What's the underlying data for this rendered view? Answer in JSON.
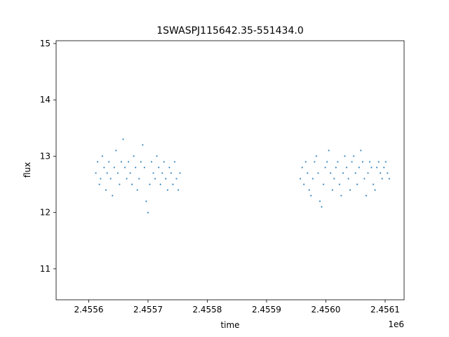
{
  "chart_data": {
    "type": "scatter",
    "title": "1SWASPJ115642.35-551434.0",
    "xlabel": "time",
    "ylabel": "flux",
    "x_offset_label": "1e6",
    "xlim": [
      2455545,
      2456132
    ],
    "ylim": [
      10.45,
      15.05
    ],
    "x_ticks": [
      2455600,
      2455700,
      2455800,
      2455900,
      2456000,
      2456100
    ],
    "x_tick_labels": [
      "2.4556",
      "2.4557",
      "2.4558",
      "2.4559",
      "2.4560",
      "2.4561"
    ],
    "y_ticks": [
      11,
      12,
      13,
      14,
      15
    ],
    "y_tick_labels": [
      "11",
      "12",
      "13",
      "14",
      "15"
    ],
    "grid": false,
    "marker_color": "#1f77b4",
    "series": [
      {
        "x": [
          2455612,
          2455615,
          2455618,
          2455620,
          2455623,
          2455626,
          2455629,
          2455631,
          2455634,
          2455637,
          2455640,
          2455643,
          2455646,
          2455649,
          2455652,
          2455655,
          2455658,
          2455661,
          2455664,
          2455667,
          2455670,
          2455673,
          2455676,
          2455679,
          2455682,
          2455685,
          2455688,
          2455691,
          2455694,
          2455697,
          2455700,
          2455703,
          2455706,
          2455709,
          2455712,
          2455715,
          2455718,
          2455721,
          2455724,
          2455727,
          2455730,
          2455733,
          2455736,
          2455739,
          2455742,
          2455745,
          2455748,
          2455751,
          2455754,
          2455957,
          2455960,
          2455963,
          2455966,
          2455969,
          2455972,
          2455975,
          2455978,
          2455981,
          2455984,
          2455987,
          2455990,
          2455993,
          2455996,
          2455999,
          2456002,
          2456005,
          2456008,
          2456011,
          2456014,
          2456017,
          2456020,
          2456023,
          2456026,
          2456029,
          2456032,
          2456035,
          2456038,
          2456041,
          2456044,
          2456047,
          2456050,
          2456053,
          2456056,
          2456059,
          2456062,
          2456065,
          2456068,
          2456071,
          2456074,
          2456077,
          2456080,
          2456083,
          2456086,
          2456089,
          2456092,
          2456095,
          2456098,
          2456101,
          2456104,
          2456107
        ],
        "y": [
          12.7,
          12.9,
          12.5,
          12.6,
          13.0,
          12.8,
          12.4,
          12.7,
          12.9,
          12.6,
          12.3,
          12.8,
          13.1,
          12.7,
          12.5,
          12.9,
          13.3,
          12.8,
          12.6,
          12.9,
          12.7,
          12.5,
          13.0,
          12.8,
          12.4,
          12.6,
          12.9,
          13.2,
          12.8,
          12.2,
          12.0,
          12.5,
          12.9,
          12.7,
          12.6,
          13.0,
          12.8,
          12.5,
          12.7,
          12.9,
          12.6,
          12.4,
          12.8,
          12.7,
          12.5,
          12.9,
          12.6,
          12.4,
          12.7,
          12.6,
          12.8,
          12.5,
          12.9,
          12.7,
          12.4,
          12.3,
          12.6,
          12.9,
          13.0,
          12.7,
          12.2,
          12.1,
          12.5,
          12.8,
          12.9,
          13.1,
          12.7,
          12.4,
          12.6,
          12.8,
          12.9,
          12.5,
          12.3,
          12.7,
          13.0,
          12.8,
          12.6,
          12.4,
          12.9,
          13.0,
          12.7,
          12.5,
          12.8,
          13.1,
          12.9,
          12.6,
          12.3,
          12.7,
          12.9,
          12.8,
          12.5,
          12.4,
          12.8,
          12.9,
          12.7,
          12.6,
          12.8,
          12.9,
          12.7,
          12.6
        ]
      }
    ]
  }
}
